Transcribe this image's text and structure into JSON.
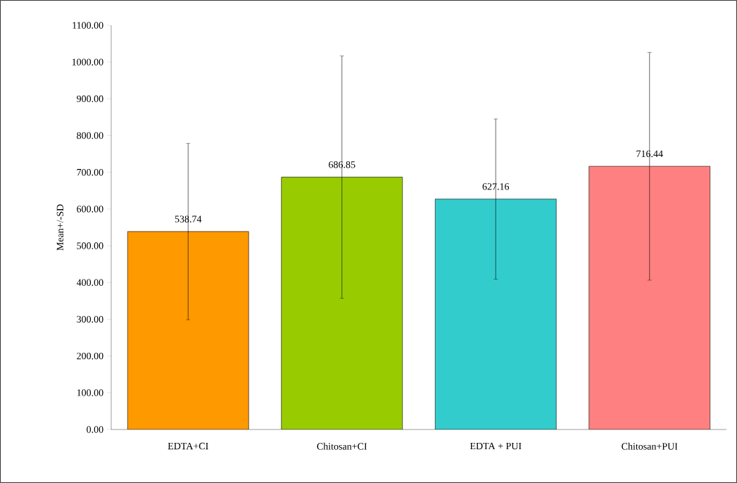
{
  "chart_data": {
    "type": "bar",
    "ylabel": "Mean+/-SD",
    "categories": [
      "EDTA+CI",
      "Chitosan+CI",
      "EDTA + PUI",
      "Chitosan+PUI"
    ],
    "values": [
      538.74,
      686.85,
      627.16,
      716.44
    ],
    "colors": [
      "#ff9900",
      "#99cc00",
      "#33cccc",
      "#ff8080"
    ],
    "errors": [
      240,
      330,
      218,
      310
    ],
    "data_labels": true,
    "ylim": [
      0,
      1100
    ],
    "yticks": [
      {
        "value": 0,
        "label": "0.00"
      },
      {
        "value": 100,
        "label": "100.00"
      },
      {
        "value": 200,
        "label": "200.00"
      },
      {
        "value": 300,
        "label": "300.00"
      },
      {
        "value": 400,
        "label": "400.00"
      },
      {
        "value": 500,
        "label": "500.00"
      },
      {
        "value": 600,
        "label": "600.00"
      },
      {
        "value": 700,
        "label": "700.00"
      },
      {
        "value": 800,
        "label": "800.00"
      },
      {
        "value": 900,
        "label": "900.00"
      },
      {
        "value": 1000,
        "label": "1000.00"
      },
      {
        "value": 1100,
        "label": "1100.00"
      }
    ]
  }
}
